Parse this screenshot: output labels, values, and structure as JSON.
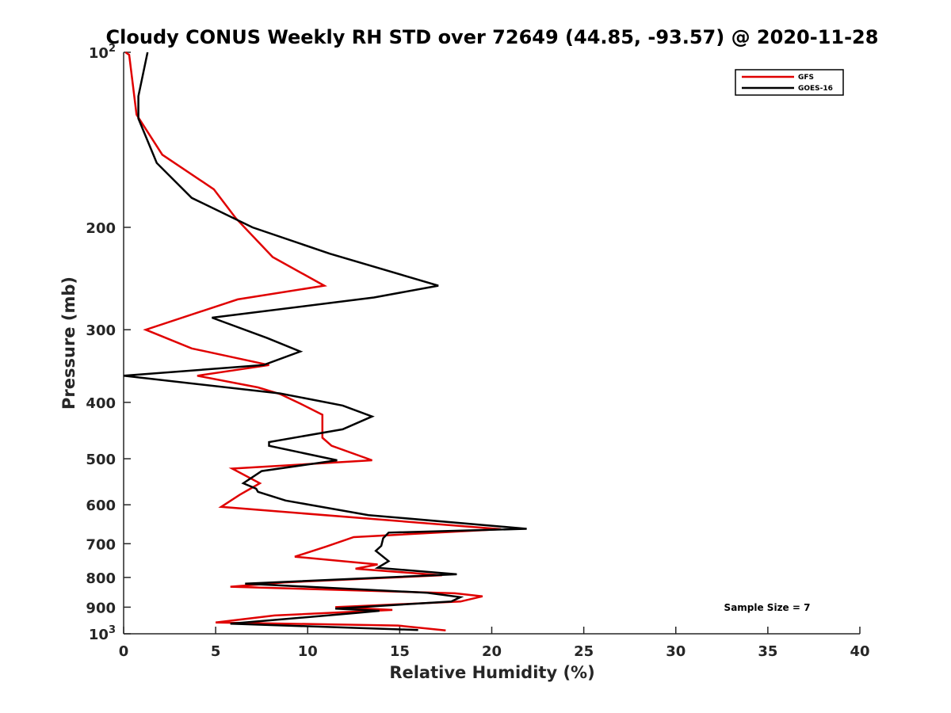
{
  "chart_data": {
    "type": "line",
    "title": "Cloudy CONUS Weekly RH STD over 72649 (44.85, -93.57) @ 2020-11-28",
    "xlabel": "Relative Humidity (%)",
    "ylabel": "Pressure (mb)",
    "xlim": [
      0,
      40
    ],
    "ylim": [
      100,
      1000
    ],
    "y_scale": "log",
    "y_reversed": true,
    "x_ticks": [
      "0",
      "5",
      "10",
      "15",
      "20",
      "25",
      "30",
      "35",
      "40"
    ],
    "y_ticks": [
      {
        "value": 100,
        "base": "10",
        "exp": "2"
      },
      {
        "value": 200,
        "label": "200"
      },
      {
        "value": 300,
        "label": "300"
      },
      {
        "value": 400,
        "label": "400"
      },
      {
        "value": 500,
        "label": "500"
      },
      {
        "value": 600,
        "label": "600"
      },
      {
        "value": 700,
        "label": "700"
      },
      {
        "value": 800,
        "label": "800"
      },
      {
        "value": 900,
        "label": "900"
      },
      {
        "value": 1000,
        "base": "10",
        "exp": "3"
      }
    ],
    "grid": false,
    "legend_position": "top-right",
    "annotation": "Sample Size = 7",
    "series": [
      {
        "name": "GFS",
        "color": "#e00000",
        "rh": [
          0.1,
          0.3,
          0.7,
          2.1,
          4.9,
          6.1,
          8.1,
          10.9,
          6.2,
          1.2,
          3.7,
          7.9,
          4.0,
          7.3,
          8.5,
          9.6,
          10.8,
          10.8,
          11.3,
          13.5,
          5.9,
          7.4,
          6.3,
          5.3,
          20.5,
          12.5,
          11.0,
          9.3,
          13.8,
          12.6,
          17.3,
          8.7,
          5.8,
          18.0,
          19.5,
          18.3,
          11.5,
          14.6,
          8.2,
          5.0,
          14.9,
          17.5
        ],
        "pressure": [
          100,
          101,
          128,
          150,
          172,
          193,
          225,
          252,
          266,
          300,
          323,
          345,
          360,
          377,
          387,
          402,
          420,
          460,
          475,
          503,
          520,
          551,
          577,
          605,
          661,
          682,
          708,
          737,
          760,
          773,
          793,
          816,
          830,
          852,
          862,
          880,
          900,
          910,
          930,
          956,
          968,
          987
        ]
      },
      {
        "name": "GOES-16",
        "color": "#000000",
        "rh": [
          1.3,
          0.8,
          0.8,
          0.8,
          1.8,
          3.7,
          7.0,
          11.2,
          17.1,
          13.6,
          4.8,
          7.8,
          9.6,
          7.6,
          0.0,
          8.5,
          11.9,
          13.5,
          11.9,
          7.9,
          7.9,
          11.6,
          7.5,
          6.5,
          7.2,
          7.3,
          8.8,
          13.3,
          21.9,
          14.4,
          14.1,
          14.0,
          13.7,
          14.4,
          13.8,
          18.1,
          6.6,
          16.5,
          18.3,
          17.8,
          11.5,
          13.9,
          12.8,
          5.8,
          16.0
        ],
        "pressure": [
          100,
          119,
          128,
          130,
          155,
          178,
          200,
          222,
          252,
          264,
          286,
          310,
          327,
          345,
          360,
          386,
          405,
          423,
          445,
          468,
          475,
          503,
          525,
          551,
          563,
          570,
          590,
          625,
          660,
          670,
          685,
          706,
          720,
          750,
          770,
          790,
          820,
          850,
          865,
          880,
          905,
          913,
          920,
          961,
          985
        ]
      }
    ]
  }
}
